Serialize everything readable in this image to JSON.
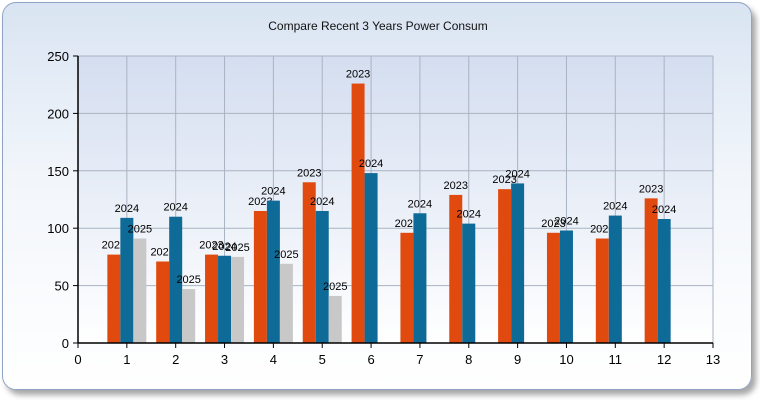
{
  "chart_data": {
    "type": "bar",
    "title": "Compare Recent 3 Years Power Consum",
    "xlabel": "",
    "ylabel": "",
    "xlim": [
      0,
      13
    ],
    "ylim": [
      0,
      250
    ],
    "x_ticks": [
      "0",
      "1",
      "2",
      "3",
      "4",
      "5",
      "6",
      "7",
      "8",
      "9",
      "10",
      "11",
      "12",
      "13"
    ],
    "y_ticks": [
      "0",
      "50",
      "100",
      "150",
      "200",
      "250"
    ],
    "categories": [
      1,
      2,
      3,
      4,
      5,
      6,
      7,
      8,
      9,
      10,
      11,
      12
    ],
    "grid": true,
    "legend": "none",
    "series": [
      {
        "name": "2023",
        "color": "#e04a0f",
        "values": [
          77,
          71,
          77,
          115,
          140,
          226,
          96,
          129,
          134,
          96,
          91,
          126
        ]
      },
      {
        "name": "2024",
        "color": "#0e6a96",
        "values": [
          109,
          110,
          76,
          124,
          115,
          148,
          113,
          104,
          139,
          98,
          111,
          108
        ]
      },
      {
        "name": "2025",
        "color": "#c8c8c8",
        "values": [
          91,
          47,
          75,
          69,
          41,
          null,
          null,
          null,
          null,
          null,
          null,
          null
        ]
      }
    ]
  }
}
